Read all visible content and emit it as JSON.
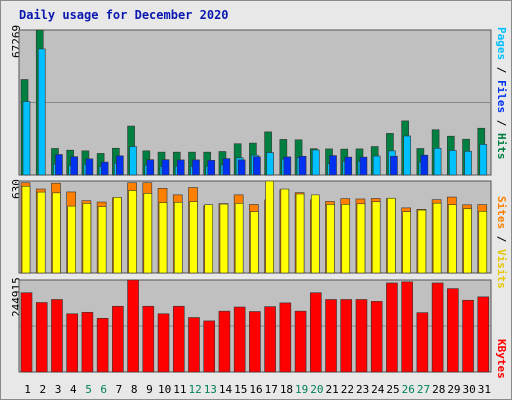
{
  "title": "Daily usage for December 2020",
  "colors": {
    "hits": "#008040",
    "files": "#00c0ff",
    "pages": "#0030f0",
    "visits": "#ffff00",
    "sites": "#ff8000",
    "kbytes": "#ff0000",
    "weekend_day": "#00805c",
    "weekday": "#000000",
    "panel_bg": "#c0c0c0",
    "gridline": "#888888"
  },
  "labels": {
    "hits": "Hits",
    "files": "Files",
    "pages": "Pages",
    "visits": "Visits",
    "sites": "Sites",
    "kbytes": "KBytes",
    "separator": " / "
  },
  "chart_data": [
    {
      "type": "bar",
      "panel": "hits-files-pages",
      "ymax_label": "67269",
      "ylim": [
        0,
        67269
      ],
      "categories": [
        "1",
        "2",
        "3",
        "4",
        "5",
        "6",
        "7",
        "8",
        "9",
        "10",
        "11",
        "12",
        "13",
        "14",
        "15",
        "16",
        "17",
        "18",
        "19",
        "20",
        "21",
        "22",
        "23",
        "24",
        "25",
        "26",
        "27",
        "28",
        "29",
        "30",
        "31"
      ],
      "weekend_days": [
        "5",
        "6",
        "12",
        "13",
        "19",
        "20",
        "26",
        "27"
      ],
      "series": [
        {
          "name": "Hits",
          "values": [
            44300,
            67269,
            12300,
            11500,
            11200,
            10000,
            12400,
            22700,
            11200,
            10600,
            10600,
            10600,
            10600,
            10900,
            14500,
            14800,
            20000,
            16500,
            16300,
            12200,
            12100,
            12000,
            12100,
            13200,
            19300,
            25100,
            12300,
            21000,
            18000,
            16600,
            21700
          ]
        },
        {
          "name": "Files",
          "values": [
            34100,
            58500,
            5000,
            4400,
            5000,
            3900,
            5400,
            13200,
            4600,
            4000,
            4000,
            4000,
            4100,
            4700,
            8000,
            9200,
            10400,
            7400,
            8100,
            11600,
            5200,
            6400,
            6400,
            8800,
            11200,
            18100,
            6000,
            12400,
            11400,
            11000,
            14200
          ]
        },
        {
          "name": "Pages",
          "values": [
            0,
            0,
            9500,
            8500,
            7500,
            6000,
            8900,
            0,
            7100,
            7100,
            7000,
            7000,
            6800,
            7600,
            7000,
            8500,
            0,
            8400,
            8700,
            0,
            9000,
            8300,
            8300,
            0,
            8700,
            0,
            9200,
            0,
            0,
            0,
            0
          ]
        }
      ]
    },
    {
      "type": "bar",
      "panel": "visits-sites",
      "ymax_label": "630",
      "ylim": [
        0,
        630
      ],
      "categories": [
        "1",
        "2",
        "3",
        "4",
        "5",
        "6",
        "7",
        "8",
        "9",
        "10",
        "11",
        "12",
        "13",
        "14",
        "15",
        "16",
        "17",
        "18",
        "19",
        "20",
        "21",
        "22",
        "23",
        "24",
        "25",
        "26",
        "27",
        "28",
        "29",
        "30",
        "31"
      ],
      "series": [
        {
          "name": "Visits",
          "values": [
            594,
            554,
            549,
            458,
            477,
            455,
            518,
            565,
            545,
            482,
            484,
            489,
            468,
            472,
            477,
            420,
            630,
            575,
            541,
            535,
            470,
            470,
            474,
            488,
            512,
            420,
            431,
            478,
            468,
            440,
            422
          ]
        },
        {
          "name": "Sites",
          "values": [
            618,
            575,
            615,
            555,
            495,
            486,
            515,
            618,
            618,
            580,
            535,
            585,
            460,
            475,
            535,
            469,
            500,
            570,
            550,
            501,
            490,
            509,
            507,
            510,
            510,
            446,
            436,
            502,
            520,
            467,
            468
          ]
        }
      ]
    },
    {
      "type": "bar",
      "panel": "kbytes",
      "ymax_label": "244915",
      "ylim": [
        0,
        244915
      ],
      "categories": [
        "1",
        "2",
        "3",
        "4",
        "5",
        "6",
        "7",
        "8",
        "9",
        "10",
        "11",
        "12",
        "13",
        "14",
        "15",
        "16",
        "17",
        "18",
        "19",
        "20",
        "21",
        "22",
        "23",
        "24",
        "25",
        "26",
        "27",
        "28",
        "29",
        "30",
        "31"
      ],
      "series": [
        {
          "name": "KBytes",
          "values": [
            211000,
            185000,
            193000,
            155000,
            159000,
            143000,
            175000,
            244915,
            175000,
            155000,
            175000,
            145000,
            136000,
            162000,
            173000,
            161000,
            174000,
            184000,
            162000,
            211000,
            193000,
            193000,
            193000,
            188000,
            237000,
            240000,
            158000,
            237000,
            222000,
            191000,
            200000
          ]
        }
      ]
    }
  ]
}
